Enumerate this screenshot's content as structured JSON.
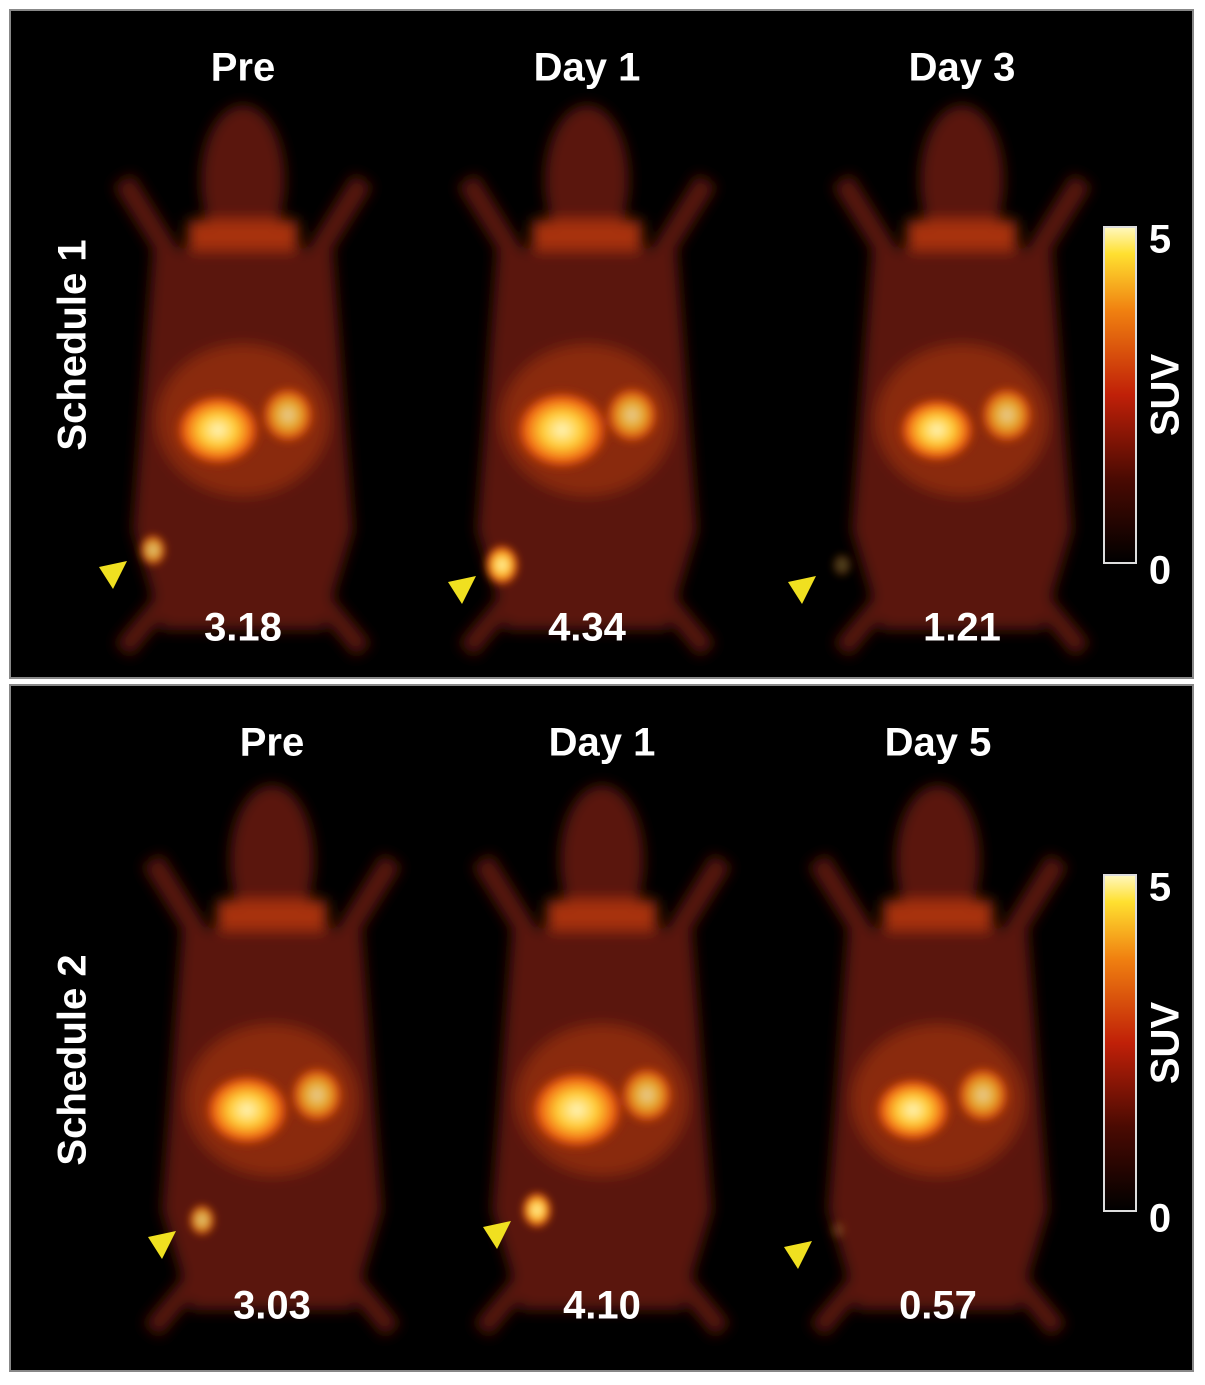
{
  "panels": [
    {
      "label": "Schedule 1",
      "columns": [
        {
          "title": "Pre",
          "value": "3.18"
        },
        {
          "title": "Day 1",
          "value": "4.34"
        },
        {
          "title": "Day 3",
          "value": "1.21"
        }
      ],
      "colorbar": {
        "label": "SUV",
        "ticks": [
          5,
          0
        ]
      }
    },
    {
      "label": "Schedule 2",
      "columns": [
        {
          "title": "Pre",
          "value": "3.03"
        },
        {
          "title": "Day 1",
          "value": "4.10"
        },
        {
          "title": "Day 5",
          "value": "0.57"
        }
      ],
      "colorbar": {
        "label": "SUV",
        "ticks": [
          5,
          0
        ]
      }
    }
  ]
}
